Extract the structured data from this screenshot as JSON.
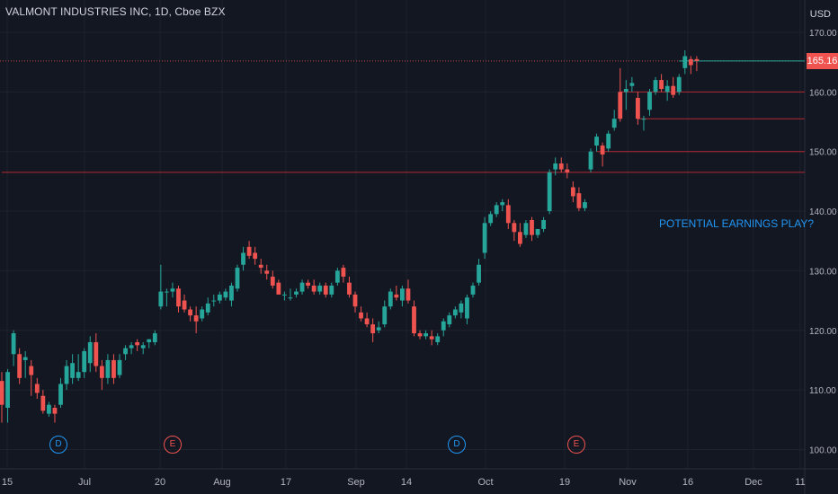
{
  "header": {
    "title": "VALMONT INDUSTRIES INC, 1D, Cboe BZX",
    "currency": "USD"
  },
  "annotation": "POTENTIAL EARNINGS PLAY?",
  "last_price": "165.16",
  "events": [
    {
      "type": "dividend",
      "label": "D",
      "date": "Jun 28"
    },
    {
      "type": "earnings",
      "label": "E",
      "date": "Jul 21"
    },
    {
      "type": "dividend",
      "label": "D",
      "date": "Sep 27"
    },
    {
      "type": "earnings",
      "label": "E",
      "date": "Oct 20"
    }
  ],
  "chart_data": {
    "type": "candlestick",
    "title": "VALMONT INDUSTRIES INC, 1D, Cboe BZX",
    "y_tick_labels": [
      "100.00",
      "110.00",
      "120.00",
      "130.00",
      "140.00",
      "150.00",
      "160.00",
      "170.00"
    ],
    "x_tick_labels": [
      "15",
      "Jul",
      "20",
      "Aug",
      "17",
      "Sep",
      "14",
      "Oct",
      "19",
      "Nov",
      "16",
      "Dec",
      "11"
    ],
    "ylim": [
      98,
      172
    ],
    "grid": true,
    "colors": {
      "up": "#26a69a",
      "down": "#ef5350",
      "grid": "#1e222d",
      "level": "#b22833",
      "current": "#26a69a"
    },
    "horizontal_levels": [
      {
        "price": 146.5,
        "start": "Oct 23"
      },
      {
        "price": 150.0,
        "start": "Nov 4"
      },
      {
        "price": 155.5,
        "start": "Nov 15"
      },
      {
        "price": 160.0,
        "start": "Nov 10"
      },
      {
        "price": 165.2,
        "start": "Nov 24",
        "kind": "current"
      }
    ],
    "candles": [
      {
        "d": "Jun 14",
        "o": 111.5,
        "h": 113,
        "l": 104.5,
        "c": 107.5
      },
      {
        "d": "Jun 15",
        "o": 107,
        "h": 113.5,
        "l": 104.5,
        "c": 113
      },
      {
        "d": "Jun 16",
        "o": 116,
        "h": 120,
        "l": 114,
        "c": 119.5
      },
      {
        "d": "Jun 17",
        "o": 116,
        "h": 117,
        "l": 111,
        "c": 112
      },
      {
        "d": "Jun 18",
        "o": 115,
        "h": 116.5,
        "l": 112,
        "c": 115.5
      },
      {
        "d": "Jun 21",
        "o": 114,
        "h": 115,
        "l": 109,
        "c": 112.5
      },
      {
        "d": "Jun 22",
        "o": 111,
        "h": 112,
        "l": 108.5,
        "c": 109.5
      },
      {
        "d": "Jun 23",
        "o": 109,
        "h": 110,
        "l": 106,
        "c": 106.5
      },
      {
        "d": "Jun 24",
        "o": 106,
        "h": 108,
        "l": 105.5,
        "c": 107.5
      },
      {
        "d": "Jun 25",
        "o": 107,
        "h": 107.5,
        "l": 104.5,
        "c": 106
      },
      {
        "d": "Jun 28",
        "o": 107.5,
        "h": 112,
        "l": 107,
        "c": 111
      },
      {
        "d": "Jun 29",
        "o": 111,
        "h": 115,
        "l": 110,
        "c": 114
      },
      {
        "d": "Jun 30",
        "o": 112,
        "h": 116,
        "l": 111,
        "c": 114.5
      },
      {
        "d": "Jul 1",
        "o": 112,
        "h": 116,
        "l": 111.5,
        "c": 113
      },
      {
        "d": "Jul 2",
        "o": 113,
        "h": 117,
        "l": 112,
        "c": 116.5
      },
      {
        "d": "Jul 6",
        "o": 114.5,
        "h": 119,
        "l": 113,
        "c": 118
      },
      {
        "d": "Jul 7",
        "o": 118,
        "h": 119.5,
        "l": 113,
        "c": 114
      },
      {
        "d": "Jul 8",
        "o": 114,
        "h": 115,
        "l": 110,
        "c": 112
      },
      {
        "d": "Jul 9",
        "o": 112,
        "h": 116,
        "l": 111,
        "c": 115
      },
      {
        "d": "Jul 12",
        "o": 115,
        "h": 116,
        "l": 111,
        "c": 112
      },
      {
        "d": "Jul 13",
        "o": 112.5,
        "h": 116,
        "l": 112,
        "c": 115
      },
      {
        "d": "Jul 14",
        "o": 116,
        "h": 117.5,
        "l": 115,
        "c": 117
      },
      {
        "d": "Jul 15",
        "o": 117,
        "h": 118,
        "l": 116,
        "c": 117.5
      },
      {
        "d": "Jul 16",
        "o": 118,
        "h": 118.5,
        "l": 116.5,
        "c": 117.5
      },
      {
        "d": "Jul 19",
        "o": 117,
        "h": 118,
        "l": 116,
        "c": 117.5
      },
      {
        "d": "Jul 20",
        "o": 118,
        "h": 118.5,
        "l": 117,
        "c": 118.5
      },
      {
        "d": "Jul 21",
        "o": 118,
        "h": 120,
        "l": 117.5,
        "c": 119.5
      },
      {
        "d": "Jul 22",
        "o": 124,
        "h": 131,
        "l": 123.5,
        "c": 126.5
      },
      {
        "d": "Jul 23",
        "o": 126.5,
        "h": 127,
        "l": 124,
        "c": 126.5
      },
      {
        "d": "Jul 26",
        "o": 126.5,
        "h": 128,
        "l": 125.5,
        "c": 127
      },
      {
        "d": "Jul 27",
        "o": 127,
        "h": 127.5,
        "l": 123,
        "c": 124
      },
      {
        "d": "Jul 28",
        "o": 125,
        "h": 126,
        "l": 123,
        "c": 123.5
      },
      {
        "d": "Jul 29",
        "o": 123.5,
        "h": 124,
        "l": 121.5,
        "c": 122.5
      },
      {
        "d": "Jul 30",
        "o": 122.5,
        "h": 124,
        "l": 119.5,
        "c": 121.5
      },
      {
        "d": "Aug 2",
        "o": 122,
        "h": 124,
        "l": 121.5,
        "c": 123.5
      },
      {
        "d": "Aug 3",
        "o": 123,
        "h": 125.5,
        "l": 122.5,
        "c": 124.5
      },
      {
        "d": "Aug 4",
        "o": 125,
        "h": 126,
        "l": 124,
        "c": 125
      },
      {
        "d": "Aug 5",
        "o": 125,
        "h": 126.5,
        "l": 124.5,
        "c": 126
      },
      {
        "d": "Aug 6",
        "o": 125.5,
        "h": 127,
        "l": 125,
        "c": 126.5
      },
      {
        "d": "Aug 9",
        "o": 125,
        "h": 128,
        "l": 124,
        "c": 127.5
      },
      {
        "d": "Aug 10",
        "o": 127,
        "h": 131,
        "l": 126.5,
        "c": 130.5
      },
      {
        "d": "Aug 11",
        "o": 131,
        "h": 134,
        "l": 130,
        "c": 133
      },
      {
        "d": "Aug 12",
        "o": 134,
        "h": 135,
        "l": 132,
        "c": 132.5
      },
      {
        "d": "Aug 13",
        "o": 133,
        "h": 134,
        "l": 131,
        "c": 132
      },
      {
        "d": "Aug 16",
        "o": 131,
        "h": 132,
        "l": 129.5,
        "c": 130.5
      },
      {
        "d": "Aug 17",
        "o": 130,
        "h": 131,
        "l": 128.5,
        "c": 129.5
      },
      {
        "d": "Aug 18",
        "o": 129,
        "h": 130,
        "l": 127,
        "c": 127.5
      },
      {
        "d": "Aug 19",
        "o": 128,
        "h": 128.5,
        "l": 126,
        "c": 126
      },
      {
        "d": "Aug 20",
        "o": 126,
        "h": 126.5,
        "l": 125,
        "c": 126
      },
      {
        "d": "Aug 23",
        "o": 125.5,
        "h": 127,
        "l": 125,
        "c": 125.5
      },
      {
        "d": "Aug 24",
        "o": 126,
        "h": 127,
        "l": 125.5,
        "c": 126.5
      },
      {
        "d": "Aug 25",
        "o": 126.5,
        "h": 128.5,
        "l": 126,
        "c": 128
      },
      {
        "d": "Aug 26",
        "o": 128,
        "h": 128.5,
        "l": 127,
        "c": 127.5
      },
      {
        "d": "Aug 27",
        "o": 127.5,
        "h": 128.5,
        "l": 126,
        "c": 126.5
      },
      {
        "d": "Aug 30",
        "o": 126.5,
        "h": 128,
        "l": 126,
        "c": 127.5
      },
      {
        "d": "Aug 31",
        "o": 127.5,
        "h": 128,
        "l": 125.5,
        "c": 126
      },
      {
        "d": "Sep 1",
        "o": 126,
        "h": 128,
        "l": 125.5,
        "c": 127.5
      },
      {
        "d": "Sep 2",
        "o": 128,
        "h": 130.5,
        "l": 127.5,
        "c": 130
      },
      {
        "d": "Sep 3",
        "o": 130.5,
        "h": 131,
        "l": 128,
        "c": 129
      },
      {
        "d": "Sep 7",
        "o": 128,
        "h": 129,
        "l": 125.5,
        "c": 126
      },
      {
        "d": "Sep 8",
        "o": 126,
        "h": 126.5,
        "l": 123,
        "c": 124
      },
      {
        "d": "Sep 9",
        "o": 123,
        "h": 124,
        "l": 121.5,
        "c": 122
      },
      {
        "d": "Sep 10",
        "o": 122,
        "h": 123,
        "l": 120.5,
        "c": 121
      },
      {
        "d": "Sep 13",
        "o": 121,
        "h": 122,
        "l": 118,
        "c": 119.5
      },
      {
        "d": "Sep 14",
        "o": 120,
        "h": 121.5,
        "l": 119.5,
        "c": 120.5
      },
      {
        "d": "Sep 15",
        "o": 121,
        "h": 125,
        "l": 120.5,
        "c": 124
      },
      {
        "d": "Sep 16",
        "o": 124,
        "h": 127,
        "l": 123.5,
        "c": 126.5
      },
      {
        "d": "Sep 17",
        "o": 126,
        "h": 127.5,
        "l": 125,
        "c": 125.5
      },
      {
        "d": "Sep 20",
        "o": 125,
        "h": 127.5,
        "l": 124,
        "c": 127
      },
      {
        "d": "Sep 21",
        "o": 127,
        "h": 128.5,
        "l": 124.5,
        "c": 125
      },
      {
        "d": "Sep 22",
        "o": 124,
        "h": 125,
        "l": 119,
        "c": 119.5
      },
      {
        "d": "Sep 23",
        "o": 119.5,
        "h": 120,
        "l": 118.5,
        "c": 119
      },
      {
        "d": "Sep 24",
        "o": 119,
        "h": 120,
        "l": 118.5,
        "c": 119.5
      },
      {
        "d": "Sep 27",
        "o": 119,
        "h": 120,
        "l": 117.5,
        "c": 118.5
      },
      {
        "d": "Sep 28",
        "o": 118,
        "h": 119.5,
        "l": 117.5,
        "c": 119
      },
      {
        "d": "Sep 29",
        "o": 120,
        "h": 122,
        "l": 119,
        "c": 121.5
      },
      {
        "d": "Sep 30",
        "o": 121,
        "h": 123,
        "l": 120.5,
        "c": 122.5
      },
      {
        "d": "Oct 1",
        "o": 122.5,
        "h": 124,
        "l": 122,
        "c": 123.5
      },
      {
        "d": "Oct 4",
        "o": 123,
        "h": 125,
        "l": 122,
        "c": 124.5
      },
      {
        "d": "Oct 5",
        "o": 122,
        "h": 126,
        "l": 121,
        "c": 125.5
      },
      {
        "d": "Oct 6",
        "o": 126,
        "h": 128,
        "l": 125.5,
        "c": 127.5
      },
      {
        "d": "Oct 7",
        "o": 128,
        "h": 132,
        "l": 127.5,
        "c": 131
      },
      {
        "d": "Oct 8",
        "o": 133,
        "h": 139,
        "l": 132,
        "c": 138
      },
      {
        "d": "Oct 11",
        "o": 138,
        "h": 140,
        "l": 137.5,
        "c": 139.5
      },
      {
        "d": "Oct 12",
        "o": 139.5,
        "h": 141.5,
        "l": 139,
        "c": 141
      },
      {
        "d": "Oct 13",
        "o": 141,
        "h": 142,
        "l": 140,
        "c": 141.5
      },
      {
        "d": "Oct 14",
        "o": 141,
        "h": 142,
        "l": 137,
        "c": 138
      },
      {
        "d": "Oct 15",
        "o": 138,
        "h": 138.5,
        "l": 135,
        "c": 136.5
      },
      {
        "d": "Oct 18",
        "o": 136.5,
        "h": 138,
        "l": 134,
        "c": 134.5
      },
      {
        "d": "Oct 19",
        "o": 136,
        "h": 138.5,
        "l": 135.5,
        "c": 138
      },
      {
        "d": "Oct 20",
        "o": 138.5,
        "h": 139,
        "l": 135,
        "c": 136
      },
      {
        "d": "Oct 21",
        "o": 136,
        "h": 137,
        "l": 135.5,
        "c": 137
      },
      {
        "d": "Oct 22",
        "o": 137,
        "h": 139,
        "l": 136.5,
        "c": 138.5
      },
      {
        "d": "Oct 25",
        "o": 140,
        "h": 147,
        "l": 139.5,
        "c": 146.5
      },
      {
        "d": "Oct 26",
        "o": 147,
        "h": 149,
        "l": 146,
        "c": 148
      },
      {
        "d": "Oct 27",
        "o": 148,
        "h": 149,
        "l": 146.5,
        "c": 147
      },
      {
        "d": "Oct 28",
        "o": 147,
        "h": 148,
        "l": 145.5,
        "c": 146.5
      },
      {
        "d": "Oct 29",
        "o": 144,
        "h": 145,
        "l": 141.5,
        "c": 142.5
      },
      {
        "d": "Nov 1",
        "o": 143,
        "h": 144,
        "l": 140,
        "c": 140.5
      },
      {
        "d": "Nov 2",
        "o": 140.5,
        "h": 142,
        "l": 140,
        "c": 141.5
      },
      {
        "d": "Nov 3",
        "o": 147,
        "h": 150.5,
        "l": 146.5,
        "c": 150
      },
      {
        "d": "Nov 4",
        "o": 151,
        "h": 153,
        "l": 150,
        "c": 152.5
      },
      {
        "d": "Nov 5",
        "o": 151,
        "h": 151.5,
        "l": 147.5,
        "c": 149.5
      },
      {
        "d": "Nov 8",
        "o": 150.5,
        "h": 153.5,
        "l": 150,
        "c": 153
      },
      {
        "d": "Nov 9",
        "o": 154,
        "h": 157,
        "l": 153.5,
        "c": 155.5
      },
      {
        "d": "Nov 10",
        "o": 160,
        "h": 164,
        "l": 155,
        "c": 155.5
      },
      {
        "d": "Nov 11",
        "o": 160,
        "h": 162,
        "l": 157,
        "c": 160.5
      },
      {
        "d": "Nov 12",
        "o": 161,
        "h": 162.5,
        "l": 160,
        "c": 161.5
      },
      {
        "d": "Nov 15",
        "o": 159,
        "h": 160,
        "l": 154.5,
        "c": 155.5
      },
      {
        "d": "Nov 16",
        "o": 155.5,
        "h": 156,
        "l": 153.5,
        "c": 155.5
      },
      {
        "d": "Nov 17",
        "o": 157,
        "h": 160.5,
        "l": 156,
        "c": 160
      },
      {
        "d": "Nov 18",
        "o": 160,
        "h": 162.5,
        "l": 159.5,
        "c": 162
      },
      {
        "d": "Nov 19",
        "o": 162,
        "h": 163,
        "l": 160,
        "c": 160.5
      },
      {
        "d": "Nov 22",
        "o": 160,
        "h": 162,
        "l": 158.5,
        "c": 161
      },
      {
        "d": "Nov 23",
        "o": 161,
        "h": 162.5,
        "l": 159,
        "c": 159.5
      },
      {
        "d": "Nov 24",
        "o": 160,
        "h": 163,
        "l": 159.5,
        "c": 162.5
      },
      {
        "d": "Nov 26",
        "o": 164,
        "h": 167,
        "l": 163,
        "c": 166
      },
      {
        "d": "Nov 29",
        "o": 165.5,
        "h": 166,
        "l": 163,
        "c": 164.5
      },
      {
        "d": "Nov 30",
        "o": 165.5,
        "h": 166,
        "l": 163.5,
        "c": 165.2
      }
    ]
  }
}
